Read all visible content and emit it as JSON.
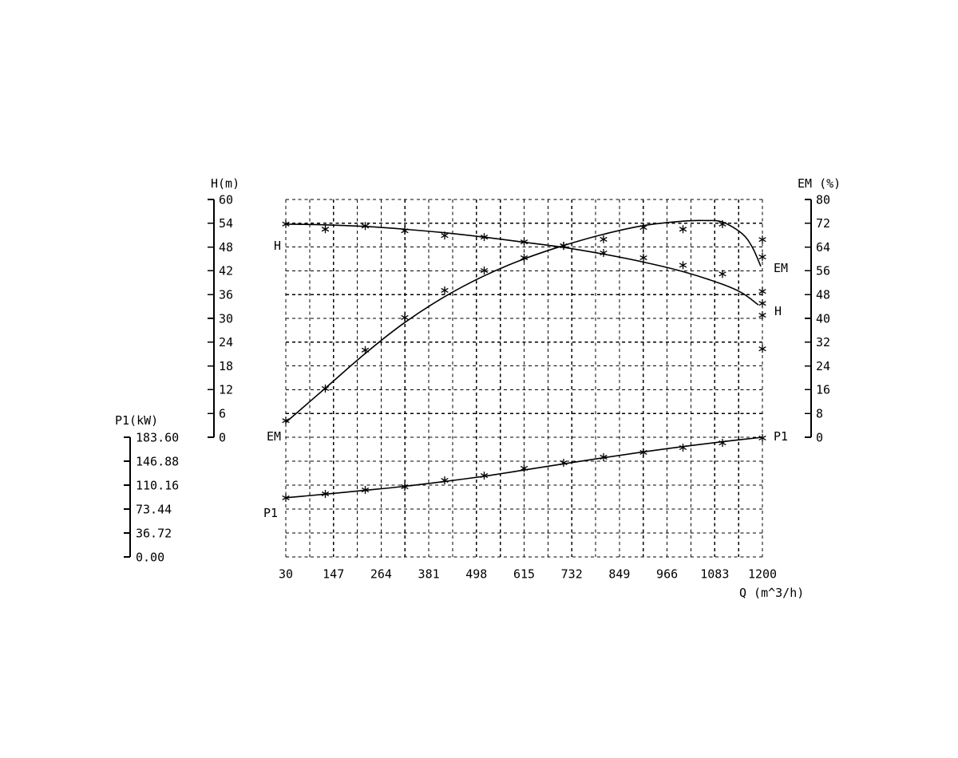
{
  "colors": {
    "ink": "#000000",
    "background": "#ffffff"
  },
  "titles": {
    "h_axis": "H(m)",
    "em_axis": "EM (%)",
    "p1_axis": "P1(kW)",
    "x_axis": "Q (m^3/h)"
  },
  "curve_labels": {
    "h_left": "H",
    "em_left": "EM",
    "p1_left": "P1",
    "em_right": "EM",
    "h_right": "H",
    "p1_right": "P1"
  },
  "chart_data": {
    "type": "line",
    "title": "",
    "grid": {
      "style": "dashed",
      "cols": 20,
      "rows": 15
    },
    "x": {
      "label": "Q (m^3/h)",
      "range": [
        30,
        1200
      ],
      "ticks": [
        30,
        147,
        264,
        381,
        498,
        615,
        732,
        849,
        966,
        1083,
        1200
      ],
      "grid_step": 58.5
    },
    "axes": {
      "H": {
        "label": "H(m)",
        "side": "left",
        "range": [
          0,
          60
        ],
        "ticks": [
          60,
          54,
          48,
          42,
          36,
          30,
          24,
          18,
          12,
          6,
          0
        ]
      },
      "EM": {
        "label": "EM (%)",
        "side": "right",
        "range": [
          0,
          80
        ],
        "ticks": [
          80,
          72,
          64,
          56,
          48,
          40,
          32,
          24,
          16,
          8,
          0
        ]
      },
      "P1": {
        "label": "P1(kW)",
        "side": "far-left",
        "range": [
          0,
          183.6
        ],
        "ticks": [
          183.6,
          146.88,
          110.16,
          73.44,
          36.72,
          0
        ],
        "tick_labels": [
          "183.60",
          "146.88",
          "110.16",
          "73.44",
          "36.72",
          "0.00"
        ]
      }
    },
    "series": [
      {
        "name": "H",
        "axis": "H",
        "curve": [
          [
            30,
            53.8
          ],
          [
            127,
            53.6
          ],
          [
            225,
            53.2
          ],
          [
            322,
            52.5
          ],
          [
            420,
            51.6
          ],
          [
            517,
            50.5
          ],
          [
            615,
            49.2
          ],
          [
            712,
            47.9
          ],
          [
            810,
            46.2
          ],
          [
            908,
            44.2
          ],
          [
            1005,
            41.8
          ],
          [
            1102,
            38.6
          ],
          [
            1150,
            36.4
          ],
          [
            1190,
            33.4
          ]
        ],
        "markers": [
          [
            30,
            53.8
          ],
          [
            127,
            52.5
          ],
          [
            225,
            53.3
          ],
          [
            322,
            52.1
          ],
          [
            420,
            50.9
          ],
          [
            517,
            50.5
          ],
          [
            615,
            49.3
          ],
          [
            712,
            48.3
          ],
          [
            810,
            46.5
          ],
          [
            908,
            45.3
          ],
          [
            1005,
            43.4
          ],
          [
            1102,
            41.2
          ]
        ]
      },
      {
        "name": "EM",
        "axis": "EM",
        "curve": [
          [
            30,
            5.0
          ],
          [
            127,
            16.5
          ],
          [
            225,
            28.2
          ],
          [
            322,
            38.6
          ],
          [
            420,
            47.3
          ],
          [
            517,
            54.3
          ],
          [
            615,
            60.0
          ],
          [
            712,
            64.5
          ],
          [
            810,
            68.3
          ],
          [
            908,
            71.2
          ],
          [
            1005,
            72.7
          ],
          [
            1060,
            72.9
          ],
          [
            1102,
            72.4
          ],
          [
            1150,
            68.5
          ],
          [
            1175,
            64.0
          ],
          [
            1196,
            57.5
          ]
        ],
        "markers": [
          [
            30,
            5.6
          ],
          [
            127,
            16.4
          ],
          [
            225,
            29.3
          ],
          [
            322,
            40.3
          ],
          [
            420,
            49.4
          ],
          [
            517,
            56.1
          ],
          [
            615,
            60.4
          ],
          [
            712,
            64.4
          ],
          [
            810,
            66.6
          ],
          [
            908,
            70.6
          ],
          [
            1005,
            70.0
          ],
          [
            1102,
            71.7
          ]
        ]
      },
      {
        "name": "P1",
        "axis": "P1",
        "curve": [
          [
            30,
            90.8
          ],
          [
            127,
            96.3
          ],
          [
            225,
            102.3
          ],
          [
            322,
            108.3
          ],
          [
            420,
            115.8
          ],
          [
            517,
            123.8
          ],
          [
            615,
            133.3
          ],
          [
            712,
            142.8
          ],
          [
            810,
            152.2
          ],
          [
            908,
            161.2
          ],
          [
            1005,
            169.3
          ],
          [
            1102,
            176.8
          ],
          [
            1200,
            183.6
          ]
        ],
        "markers": [
          [
            30,
            90.6
          ],
          [
            127,
            96.7
          ],
          [
            225,
            102.8
          ],
          [
            322,
            107.7
          ],
          [
            420,
            117.5
          ],
          [
            517,
            124.8
          ],
          [
            615,
            135.9
          ],
          [
            712,
            144.4
          ],
          [
            810,
            153.0
          ],
          [
            908,
            160.4
          ],
          [
            1005,
            167.7
          ],
          [
            1102,
            175.0
          ],
          [
            1200,
            182.5
          ]
        ]
      }
    ],
    "edge_markers": {
      "q": 1200,
      "axis": "H",
      "values": [
        49.9,
        45.5,
        36.8,
        33.8,
        30.8,
        22.3
      ]
    }
  }
}
